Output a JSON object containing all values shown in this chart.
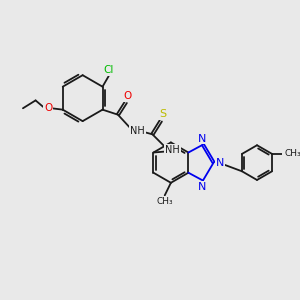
{
  "background_color": "#e9e9e9",
  "colors": {
    "bond": "#1a1a1a",
    "nitrogen": "#0000ee",
    "oxygen": "#ee0000",
    "sulfur": "#bbbb00",
    "chlorine": "#00bb00",
    "label_bg": "#e9e9e9"
  },
  "figsize": [
    3.0,
    3.0
  ],
  "dpi": 100,
  "xlim": [
    0,
    10
  ],
  "ylim": [
    0,
    10
  ]
}
